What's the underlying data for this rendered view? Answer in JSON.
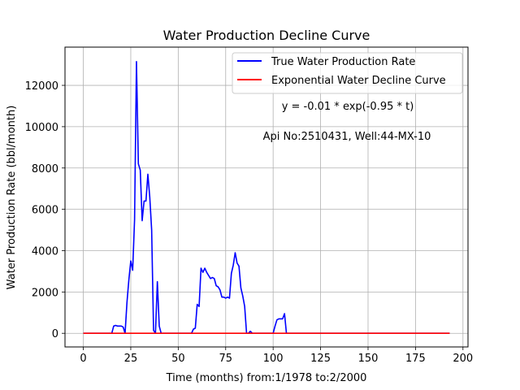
{
  "chart_data": {
    "type": "line",
    "title": "Water Production Decline Curve",
    "xlabel": "Time (months) from:1/1978 to:2/2000",
    "ylabel": "Water Production Rate (bbl/month)",
    "xlim": [
      -9.65,
      202.65
    ],
    "ylim": [
      -660,
      13850
    ],
    "xticks": [
      0,
      25,
      50,
      75,
      100,
      125,
      150,
      175,
      200
    ],
    "yticks": [
      0,
      2000,
      4000,
      6000,
      8000,
      10000,
      12000
    ],
    "grid": true,
    "legend_position": "top-right",
    "series": [
      {
        "name": "True Water Production Rate",
        "color": "#0000ff",
        "x": [
          0,
          5,
          10,
          15,
          16,
          17,
          18,
          19,
          20,
          21,
          22,
          23,
          24,
          25,
          26,
          27,
          28,
          29,
          30,
          31,
          32,
          33,
          34,
          35,
          36,
          37,
          38,
          39,
          40,
          41,
          42,
          45,
          50,
          55,
          57,
          58,
          59,
          60,
          61,
          62,
          63,
          64,
          65,
          66,
          67,
          68,
          69,
          70,
          71,
          72,
          73,
          74,
          75,
          76,
          77,
          78,
          79,
          80,
          81,
          82,
          83,
          84,
          85,
          86,
          87,
          88,
          89,
          90,
          95,
          100,
          101,
          102,
          103,
          104,
          105,
          106,
          107,
          110,
          120,
          150,
          193
        ],
        "y": [
          0,
          0,
          0,
          0,
          350,
          380,
          350,
          350,
          350,
          300,
          0,
          1500,
          2600,
          3500,
          3050,
          5500,
          13150,
          8200,
          7900,
          5450,
          6400,
          6400,
          7700,
          6600,
          5000,
          150,
          0,
          2500,
          350,
          0,
          0,
          0,
          0,
          0,
          0,
          200,
          250,
          1400,
          1300,
          3150,
          2950,
          3150,
          2950,
          2800,
          2650,
          2700,
          2650,
          2300,
          2250,
          2100,
          1750,
          1750,
          1700,
          1750,
          1700,
          2900,
          3300,
          3900,
          3400,
          3250,
          2200,
          1800,
          1300,
          0,
          0,
          100,
          0,
          0,
          0,
          0,
          350,
          650,
          700,
          700,
          700,
          950,
          0,
          0,
          0,
          0,
          0
        ]
      },
      {
        "name": "Exponential Water Decline Curve",
        "color": "#ff0000",
        "x": [
          0,
          193
        ],
        "y": [
          0,
          0
        ]
      }
    ],
    "annotations": [
      "y = -0.01 * exp(-0.95 * t)",
      "Api No:2510431, Well:44-MX-10"
    ]
  }
}
